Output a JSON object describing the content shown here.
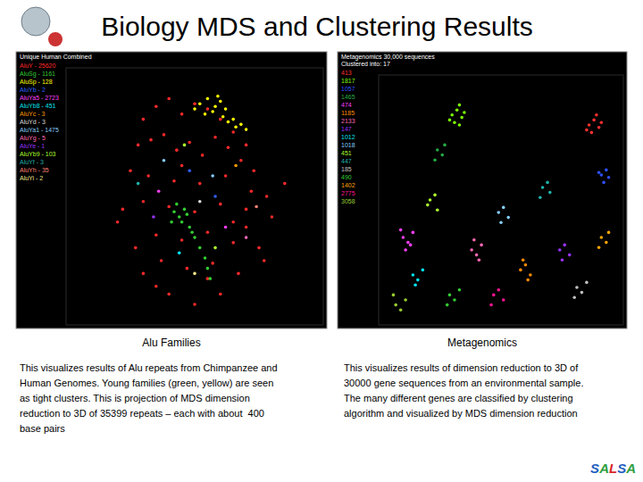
{
  "title": "Biology MDS and Clustering Results",
  "panels": [
    {
      "caption": "Alu Families",
      "text": [
        "This visualizes results of Alu repeats from Chimpanzee and",
        "Human Genomes. Young families (green, yellow) are seen",
        "as tight clusters. This is projection of MDS dimension",
        "reduction to 3D of 35399 repeats – each with about  400",
        "base pairs"
      ]
    },
    {
      "caption": "Metagenomics",
      "text": [
        "This visualizes results of dimension reduction to 3D of",
        "30000 gene sequences from an environmental sample.",
        "The many different genes are classified by clustering",
        "algorithm and visualized by MDS dimension reduction"
      ]
    }
  ],
  "footer": "SALSA",
  "chart_data": [
    {
      "type": "scatter",
      "title": "Unique Human Combined",
      "tick_labels": false,
      "xlim": [
        0,
        100
      ],
      "ylim": [
        0,
        100
      ],
      "series": [
        {
          "name": "AluY - 25620",
          "color": "#ff2a2a",
          "x": [
            30,
            35,
            40,
            45,
            50,
            55,
            60,
            65,
            70,
            28,
            33,
            38,
            43,
            48,
            53,
            58,
            63,
            68,
            73,
            25,
            32,
            42,
            52,
            62,
            72,
            78,
            22,
            30,
            40,
            50,
            60,
            70,
            80,
            35,
            45,
            55,
            65,
            75,
            27,
            37,
            47,
            57,
            67,
            77,
            20,
            85,
            40,
            60,
            50,
            45,
            55,
            35,
            65,
            30,
            70
          ],
          "values": [
            80,
            85,
            88,
            82,
            86,
            84,
            80,
            75,
            70,
            70,
            72,
            74,
            68,
            71,
            66,
            73,
            69,
            64,
            60,
            60,
            58,
            56,
            55,
            58,
            52,
            50,
            45,
            48,
            46,
            44,
            47,
            45,
            42,
            35,
            33,
            36,
            32,
            30,
            30,
            25,
            22,
            24,
            20,
            25,
            40,
            55,
            12,
            12,
            8,
            62,
            18,
            15,
            40,
            20,
            38
          ]
        },
        {
          "name": "AluSg - 1161",
          "color": "#33cc33",
          "x": [
            42,
            44,
            46,
            45,
            47,
            43,
            48,
            50,
            52,
            54,
            55,
            56,
            41,
            49
          ],
          "values": [
            44,
            42,
            45,
            40,
            43,
            47,
            38,
            34,
            30,
            26,
            22,
            18,
            40,
            36
          ]
        },
        {
          "name": "AluSp - 128",
          "color": "#ffff00",
          "x": [
            52,
            55,
            58,
            60,
            62,
            57,
            65,
            68,
            54,
            63,
            50,
            70,
            59,
            61,
            66
          ],
          "values": [
            86,
            88,
            85,
            87,
            84,
            83,
            80,
            78,
            82,
            79,
            84,
            76,
            89,
            81,
            77
          ]
        },
        {
          "name": "AluYb - 2",
          "color": "#3060ff",
          "x": [
            48,
            58
          ],
          "values": [
            60,
            50
          ]
        },
        {
          "name": "AluYa5 - 2723",
          "color": "#ff40ff",
          "x": [
            36,
            62
          ],
          "values": [
            52,
            38
          ]
        },
        {
          "name": "AluYb8 - 451",
          "color": "#00e5ee",
          "x": [
            44
          ],
          "values": [
            28
          ]
        },
        {
          "name": "AluYc - 3",
          "color": "#ff9900",
          "x": [
            66
          ],
          "values": [
            62
          ]
        },
        {
          "name": "AluYd - 3",
          "color": "#dddddd",
          "x": [
            52
          ],
          "values": [
            48
          ]
        },
        {
          "name": "AluYa1 - 1475",
          "color": "#87cefa",
          "x": [
            38,
            57
          ],
          "values": [
            64,
            58
          ]
        },
        {
          "name": "AluYg - 5",
          "color": "#ff69b4",
          "x": [
            70
          ],
          "values": [
            34
          ]
        },
        {
          "name": "AluYe - 1",
          "color": "#9933ff",
          "x": [
            34
          ],
          "values": [
            42
          ]
        },
        {
          "name": "AluYb9 - 103",
          "color": "#adff2f",
          "x": [
            46,
            58
          ],
          "values": [
            70,
            30
          ]
        },
        {
          "name": "AluYf - 3",
          "color": "#20b2aa",
          "x": [
            28
          ],
          "values": [
            55
          ]
        },
        {
          "name": "AluYh - 35",
          "color": "#fa8072",
          "x": [
            74
          ],
          "values": [
            46
          ]
        },
        {
          "name": "AluYi - 2",
          "color": "#f0e68c",
          "x": [
            50
          ],
          "values": [
            20
          ]
        }
      ]
    },
    {
      "type": "scatter",
      "title": "Metagenomics 30,000 sequences",
      "subtitle": "Clustered into: 17",
      "tick_labels": false,
      "xlim": [
        0,
        100
      ],
      "ylim": [
        0,
        100
      ],
      "series": [
        {
          "name": "413",
          "color": "#ff3030",
          "x": [
            86,
            88,
            90,
            87,
            89,
            91,
            85
          ],
          "values": [
            80,
            82,
            79,
            77,
            84,
            81,
            78
          ]
        },
        {
          "name": "1817",
          "color": "#7cfc00",
          "x": [
            30,
            32,
            34,
            31,
            33,
            35,
            29,
            33
          ],
          "values": [
            84,
            86,
            83,
            81,
            88,
            85,
            82,
            80
          ]
        },
        {
          "name": "1057",
          "color": "#3050ff",
          "x": [
            91,
            93,
            92,
            94,
            90
          ],
          "values": [
            60,
            62,
            57,
            59,
            61
          ]
        },
        {
          "name": "1465",
          "color": "#22aa44",
          "x": [
            24,
            26,
            23,
            27
          ],
          "values": [
            70,
            68,
            66,
            72
          ]
        },
        {
          "name": "474",
          "color": "#ff40ff",
          "x": [
            10,
            12,
            14,
            11,
            13,
            9
          ],
          "values": [
            35,
            33,
            37,
            30,
            32,
            38
          ]
        },
        {
          "name": "1185",
          "color": "#ff8c00",
          "x": [
            58,
            60,
            62,
            61,
            59
          ],
          "values": [
            22,
            24,
            20,
            18,
            26
          ]
        },
        {
          "name": "2133",
          "color": "#ff69b4",
          "x": [
            38,
            40,
            42,
            41,
            39
          ],
          "values": [
            30,
            28,
            32,
            26,
            34
          ]
        },
        {
          "name": "147",
          "color": "#9933ff",
          "x": [
            74,
            76,
            78,
            75
          ],
          "values": [
            30,
            32,
            28,
            26
          ]
        },
        {
          "name": "1012",
          "color": "#00e5ee",
          "x": [
            14,
            16,
            18,
            15
          ],
          "values": [
            20,
            18,
            22,
            16
          ]
        },
        {
          "name": "1018",
          "color": "#87cefa",
          "x": [
            49,
            51,
            53,
            50
          ],
          "values": [
            45,
            47,
            43,
            41
          ]
        },
        {
          "name": "451",
          "color": "#adff2f",
          "x": [
            21,
            23,
            20,
            24
          ],
          "values": [
            50,
            52,
            48,
            46
          ]
        },
        {
          "name": "447",
          "color": "#20b2aa",
          "x": [
            67,
            69,
            70,
            66
          ],
          "values": [
            55,
            57,
            53,
            51
          ]
        },
        {
          "name": "185",
          "color": "#c0c0c0",
          "x": [
            81,
            83,
            85,
            80
          ],
          "values": [
            15,
            13,
            17,
            11
          ]
        },
        {
          "name": "490",
          "color": "#32cd32",
          "x": [
            29,
            31,
            33,
            28
          ],
          "values": [
            12,
            10,
            14,
            8
          ]
        },
        {
          "name": "1402",
          "color": "#ffa500",
          "x": [
            91,
            93,
            94,
            90
          ],
          "values": [
            35,
            33,
            37,
            31
          ]
        },
        {
          "name": "2775",
          "color": "#ff1493",
          "x": [
            47,
            49,
            51,
            46
          ],
          "values": [
            12,
            14,
            10,
            8
          ]
        },
        {
          "name": "3058",
          "color": "#9acd32",
          "x": [
            7,
            9,
            11,
            6
          ],
          "values": [
            8,
            6,
            10,
            12
          ]
        }
      ]
    }
  ]
}
